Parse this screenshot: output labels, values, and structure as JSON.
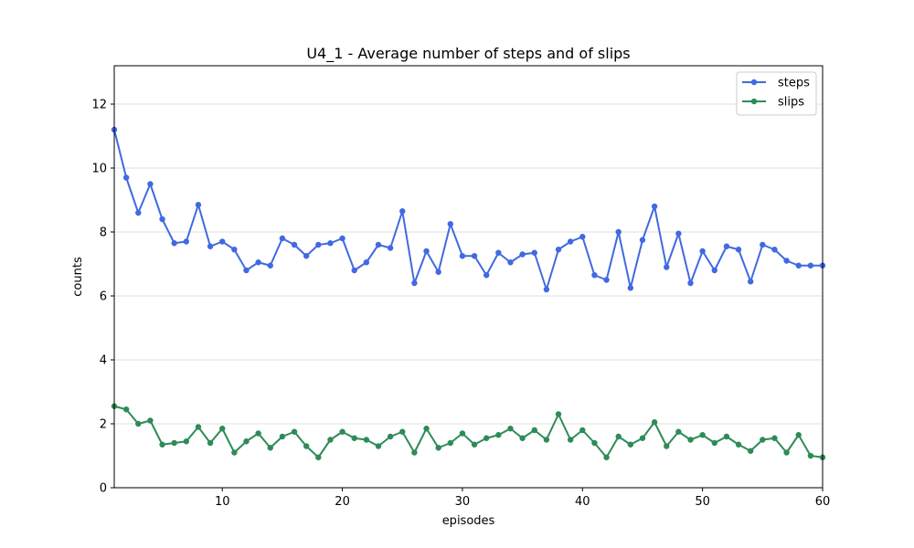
{
  "chart_data": {
    "type": "line",
    "title": "U4_1 - Average number of steps and of slips",
    "xlabel": "episodes",
    "ylabel": "counts",
    "xlim": [
      1,
      60
    ],
    "ylim": [
      0,
      13.2
    ],
    "xticks": [
      10,
      20,
      30,
      40,
      50,
      60
    ],
    "yticks": [
      0,
      2,
      4,
      6,
      8,
      10,
      12
    ],
    "grid": "horizontal",
    "legend_position": "top-right",
    "x": [
      1,
      2,
      3,
      4,
      5,
      6,
      7,
      8,
      9,
      10,
      11,
      12,
      13,
      14,
      15,
      16,
      17,
      18,
      19,
      20,
      21,
      22,
      23,
      24,
      25,
      26,
      27,
      28,
      29,
      30,
      31,
      32,
      33,
      34,
      35,
      36,
      37,
      38,
      39,
      40,
      41,
      42,
      43,
      44,
      45,
      46,
      47,
      48,
      49,
      50,
      51,
      52,
      53,
      54,
      55,
      56,
      57,
      58,
      59,
      60
    ],
    "series": [
      {
        "name": "steps",
        "color": "#4169e1",
        "values": [
          11.2,
          9.7,
          8.6,
          9.5,
          8.4,
          7.65,
          7.7,
          8.85,
          7.55,
          7.7,
          7.45,
          6.8,
          7.05,
          6.95,
          7.8,
          7.6,
          7.25,
          7.6,
          7.65,
          7.8,
          6.8,
          7.05,
          7.6,
          7.5,
          8.65,
          6.4,
          7.4,
          6.75,
          8.25,
          7.25,
          7.25,
          6.65,
          7.35,
          7.05,
          7.3,
          7.35,
          6.2,
          7.45,
          7.7,
          7.85,
          6.65,
          6.5,
          8.0,
          6.25,
          7.75,
          8.8,
          6.9,
          7.95,
          6.4,
          7.4,
          6.8,
          7.55,
          7.45,
          6.45,
          7.6,
          7.45,
          7.1,
          6.95,
          6.95,
          6.95
        ]
      },
      {
        "name": "slips",
        "color": "#2e8b57",
        "values": [
          2.55,
          2.45,
          2.0,
          2.1,
          1.35,
          1.4,
          1.45,
          1.9,
          1.4,
          1.85,
          1.1,
          1.45,
          1.7,
          1.25,
          1.6,
          1.75,
          1.3,
          0.95,
          1.5,
          1.75,
          1.55,
          1.5,
          1.3,
          1.6,
          1.75,
          1.1,
          1.85,
          1.25,
          1.4,
          1.7,
          1.35,
          1.55,
          1.65,
          1.85,
          1.55,
          1.8,
          1.5,
          2.3,
          1.5,
          1.8,
          1.4,
          0.95,
          1.6,
          1.35,
          1.55,
          2.05,
          1.3,
          1.75,
          1.5,
          1.65,
          1.4,
          1.6,
          1.35,
          1.15,
          1.5,
          1.55,
          1.1,
          1.65,
          1.0,
          0.95
        ]
      }
    ]
  }
}
